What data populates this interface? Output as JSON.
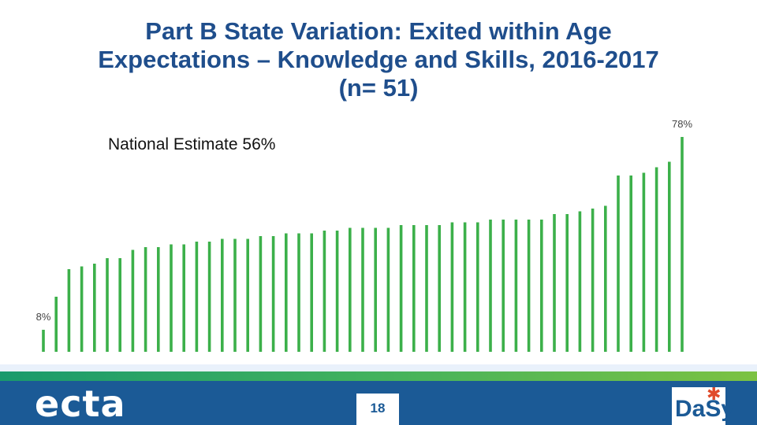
{
  "title": {
    "line1": "Part B State Variation: Exited within Age",
    "line2": "Expectations – Knowledge and Skills, 2016-2017",
    "line3": "(n= 51)"
  },
  "annotation": "National Estimate 56%",
  "footer": {
    "logo_text": "ecta",
    "page_number": "18",
    "dasy_text": "DaSy",
    "dasy_star_icon": "asterisk-star-icon"
  },
  "colors": {
    "bar": "#3cb04a",
    "title": "#1f4e8c",
    "footer": "#1b5a96"
  },
  "chart_data": {
    "type": "bar",
    "values": [
      8,
      20,
      30,
      31,
      32,
      34,
      34,
      37,
      38,
      38,
      39,
      39,
      40,
      40,
      41,
      41,
      41,
      42,
      42,
      43,
      43,
      43,
      44,
      44,
      45,
      45,
      45,
      45,
      46,
      46,
      46,
      46,
      47,
      47,
      47,
      48,
      48,
      48,
      48,
      48,
      50,
      50,
      51,
      52,
      53,
      64,
      64,
      65,
      67,
      69,
      78
    ],
    "data_labels": [
      {
        "index": 0,
        "text": "8%"
      },
      {
        "index": 50,
        "text": "78%"
      }
    ],
    "ylim": [
      0,
      80
    ],
    "grid": false,
    "legend": "none"
  }
}
